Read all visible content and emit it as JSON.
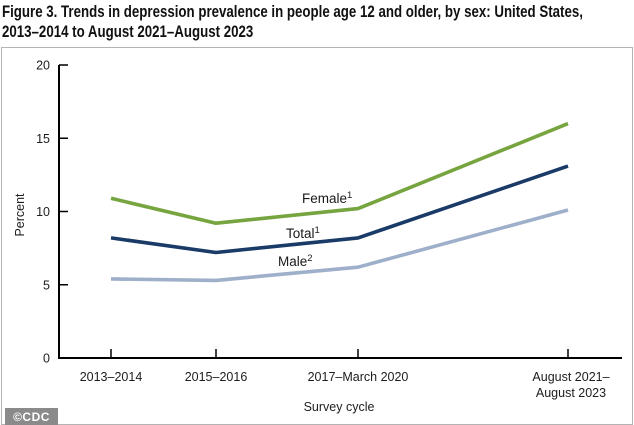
{
  "title": {
    "line1": "Figure 3. Trends in depression prevalence in people age 12 and older, by sex: United States,",
    "line2": "2013–2014 to August 2021–August 2023"
  },
  "footer": {
    "credit": "©CDC"
  },
  "chart_data": {
    "type": "line",
    "title": "Figure 3. Trends in depression prevalence in people age 12 and older, by sex: United States, 2013–2014 to August 2021–August 2023",
    "xlabel": "Survey cycle",
    "ylabel": "Percent",
    "ylim": [
      0,
      20
    ],
    "yticks": [
      0,
      5,
      10,
      15,
      20
    ],
    "grid": false,
    "legend_position": "inline-labels-on-lines",
    "categories": [
      "2013–2014",
      "2015–2016",
      "2017–March 2020",
      "August 2021–August 2023"
    ],
    "category_label_lines": [
      [
        "2013–2014"
      ],
      [
        "2015–2016"
      ],
      [
        "2017–March 2020"
      ],
      [
        "August 2021–",
        "August 2023"
      ]
    ],
    "series": [
      {
        "name": "Female",
        "sup": "1",
        "color": "#76A43F",
        "values": [
          10.9,
          9.2,
          10.2,
          16.0
        ]
      },
      {
        "name": "Total",
        "sup": "1",
        "color": "#1A3A68",
        "values": [
          8.2,
          7.2,
          8.2,
          13.1
        ]
      },
      {
        "name": "Male",
        "sup": "2",
        "color": "#9EAFCA",
        "values": [
          5.4,
          5.3,
          6.2,
          10.1
        ]
      }
    ],
    "axis_color": "#000000",
    "text_color": "#1d1d1d"
  }
}
